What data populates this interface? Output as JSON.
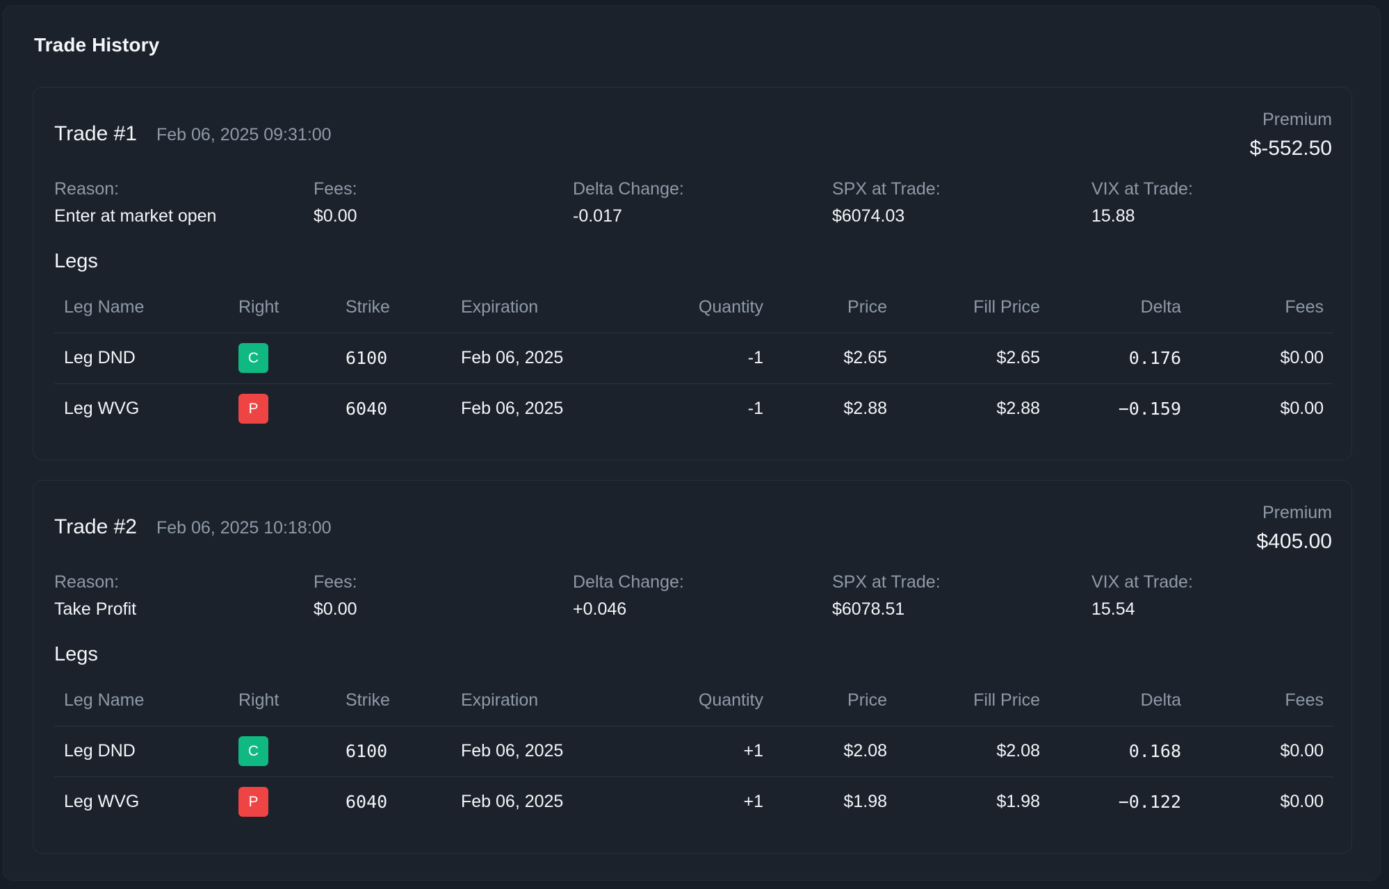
{
  "title": "Trade History",
  "labels": {
    "premium": "Premium",
    "reason": "Reason:",
    "fees": "Fees:",
    "delta_change": "Delta Change:",
    "spx": "SPX at Trade:",
    "vix": "VIX at Trade:",
    "legs": "Legs"
  },
  "columns": {
    "leg_name": "Leg Name",
    "right": "Right",
    "strike": "Strike",
    "expiration": "Expiration",
    "quantity": "Quantity",
    "price": "Price",
    "fill_price": "Fill Price",
    "delta": "Delta",
    "fees": "Fees"
  },
  "colors": {
    "call_badge": "#10b981",
    "put_badge": "#ef4444",
    "negative_quantity": "#e5484d",
    "positive_quantity": "#22b35e"
  },
  "trades": [
    {
      "name": "Trade #1",
      "time": "Feb 06, 2025 09:31:00",
      "premium": "$-552.50",
      "reason": "Enter at market open",
      "fees": "$0.00",
      "delta_change": "-0.017",
      "spx": "$6074.03",
      "vix": "15.88",
      "legs": [
        {
          "name": "Leg DND",
          "right": "C",
          "strike": "6100",
          "expiration": "Feb 06, 2025",
          "quantity": "-1",
          "price": "$2.65",
          "fill_price": "$2.65",
          "delta": "0.176",
          "fees": "$0.00"
        },
        {
          "name": "Leg WVG",
          "right": "P",
          "strike": "6040",
          "expiration": "Feb 06, 2025",
          "quantity": "-1",
          "price": "$2.88",
          "fill_price": "$2.88",
          "delta": "−0.159",
          "fees": "$0.00"
        }
      ]
    },
    {
      "name": "Trade #2",
      "time": "Feb 06, 2025 10:18:00",
      "premium": "$405.00",
      "reason": "Take Profit",
      "fees": "$0.00",
      "delta_change": "+0.046",
      "spx": "$6078.51",
      "vix": "15.54",
      "legs": [
        {
          "name": "Leg DND",
          "right": "C",
          "strike": "6100",
          "expiration": "Feb 06, 2025",
          "quantity": "+1",
          "price": "$2.08",
          "fill_price": "$2.08",
          "delta": "0.168",
          "fees": "$0.00"
        },
        {
          "name": "Leg WVG",
          "right": "P",
          "strike": "6040",
          "expiration": "Feb 06, 2025",
          "quantity": "+1",
          "price": "$1.98",
          "fill_price": "$1.98",
          "delta": "−0.122",
          "fees": "$0.00"
        }
      ]
    }
  ]
}
